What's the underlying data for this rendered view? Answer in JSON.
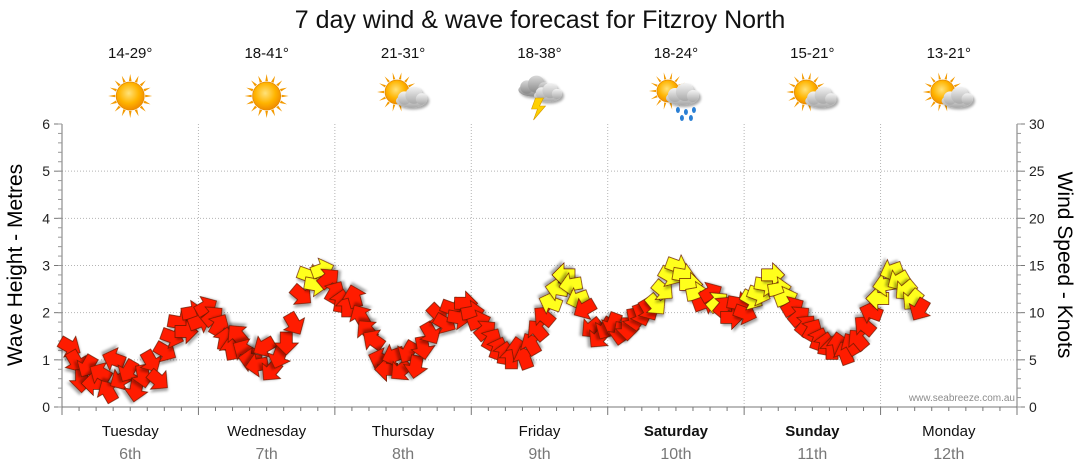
{
  "title": "7 day wind & wave forecast for Fitzroy North",
  "credit": "www.seabreeze.com.au",
  "colors": {
    "strong_wind": "#ff1a00",
    "moderate_wind": "#ffff1a",
    "grid": "#b4b4b4"
  },
  "days": [
    {
      "name": "Tuesday",
      "date": "6th",
      "temp": "14-29°",
      "icon": "sunny-icon",
      "bold": false
    },
    {
      "name": "Wednesday",
      "date": "7th",
      "temp": "18-41°",
      "icon": "sunny-icon",
      "bold": false
    },
    {
      "name": "Thursday",
      "date": "8th",
      "temp": "21-31°",
      "icon": "partly-cloudy-icon",
      "bold": false
    },
    {
      "name": "Friday",
      "date": "9th",
      "temp": "18-38°",
      "icon": "thunderstorm-icon",
      "bold": false
    },
    {
      "name": "Saturday",
      "date": "10th",
      "temp": "18-24°",
      "icon": "showers-icon",
      "bold": true
    },
    {
      "name": "Sunday",
      "date": "11th",
      "temp": "15-21°",
      "icon": "partly-cloudy-icon",
      "bold": true
    },
    {
      "name": "Monday",
      "date": "12th",
      "temp": "13-21°",
      "icon": "partly-cloudy-icon",
      "bold": false
    }
  ],
  "chart_data": {
    "type": "scatter",
    "title": "7 day wind & wave forecast for Fitzroy North",
    "ylabel_left": "Wave Height - Metres",
    "ylabel_right": "Wind Speed - Knots",
    "ylim_left": [
      0,
      6
    ],
    "ylim_right": [
      0,
      30
    ],
    "left_ticks": [
      0,
      1,
      2,
      3,
      4,
      5,
      6
    ],
    "right_ticks": [
      0,
      5,
      10,
      15,
      20,
      25,
      30
    ],
    "x_unit": "day index (0 = Tuesday 6th 00:00)",
    "grid": true,
    "series": [
      {
        "marker": "wind direction arrow",
        "points": [
          [
            0.0,
            6.5,
            30,
            "red"
          ],
          [
            0.05,
            5.0,
            60,
            "red"
          ],
          [
            0.1,
            3.0,
            90,
            "red"
          ],
          [
            0.15,
            4.5,
            120,
            "red"
          ],
          [
            0.2,
            2.5,
            180,
            "red"
          ],
          [
            0.25,
            3.5,
            210,
            "red"
          ],
          [
            0.3,
            1.5,
            240,
            "red"
          ],
          [
            0.35,
            5.0,
            200,
            "red"
          ],
          [
            0.4,
            3.0,
            150,
            "red"
          ],
          [
            0.45,
            4.0,
            120,
            "red"
          ],
          [
            0.5,
            2.0,
            100,
            "red"
          ],
          [
            0.55,
            3.5,
            80,
            "red"
          ],
          [
            0.6,
            5.0,
            60,
            "red"
          ],
          [
            0.65,
            3.0,
            40,
            "red"
          ],
          [
            0.7,
            6.0,
            30,
            "red"
          ],
          [
            0.75,
            7.5,
            20,
            "red"
          ],
          [
            0.8,
            9.0,
            10,
            "red"
          ],
          [
            0.85,
            8.0,
            0,
            "red"
          ],
          [
            0.9,
            10.0,
            350,
            "red"
          ],
          [
            0.95,
            9.0,
            340,
            "red"
          ],
          [
            1.0,
            10.5,
            330,
            "red"
          ],
          [
            1.05,
            9.5,
            320,
            "red"
          ],
          [
            1.1,
            8.5,
            300,
            "red"
          ],
          [
            1.15,
            7.0,
            280,
            "red"
          ],
          [
            1.2,
            6.0,
            260,
            "red"
          ],
          [
            1.25,
            7.5,
            230,
            "red"
          ],
          [
            1.3,
            6.0,
            210,
            "red"
          ],
          [
            1.35,
            5.0,
            190,
            "red"
          ],
          [
            1.4,
            4.5,
            170,
            "red"
          ],
          [
            1.45,
            6.5,
            150,
            "red"
          ],
          [
            1.5,
            4.0,
            130,
            "red"
          ],
          [
            1.55,
            5.5,
            110,
            "red"
          ],
          [
            1.6,
            7.0,
            90,
            "red"
          ],
          [
            1.65,
            9.0,
            60,
            "red"
          ],
          [
            1.7,
            12.0,
            40,
            "red"
          ],
          [
            1.75,
            14.0,
            20,
            "yellow"
          ],
          [
            1.8,
            13.0,
            10,
            "yellow"
          ],
          [
            1.85,
            14.5,
            340,
            "yellow"
          ],
          [
            1.9,
            13.5,
            320,
            "red"
          ],
          [
            1.95,
            12.0,
            300,
            "red"
          ],
          [
            2.0,
            11.0,
            280,
            "red"
          ],
          [
            2.05,
            10.5,
            270,
            "red"
          ],
          [
            2.1,
            11.5,
            255,
            "red"
          ],
          [
            2.15,
            9.5,
            240,
            "red"
          ],
          [
            2.2,
            8.0,
            230,
            "red"
          ],
          [
            2.25,
            7.0,
            215,
            "red"
          ],
          [
            2.3,
            5.0,
            200,
            "red"
          ],
          [
            2.35,
            4.0,
            180,
            "red"
          ],
          [
            2.4,
            5.5,
            160,
            "red"
          ],
          [
            2.45,
            4.0,
            140,
            "red"
          ],
          [
            2.5,
            6.0,
            120,
            "red"
          ],
          [
            2.55,
            4.5,
            100,
            "red"
          ],
          [
            2.6,
            6.5,
            80,
            "red"
          ],
          [
            2.65,
            8.0,
            60,
            "red"
          ],
          [
            2.7,
            10.0,
            45,
            "red"
          ],
          [
            2.75,
            9.0,
            30,
            "red"
          ],
          [
            2.8,
            10.5,
            20,
            "red"
          ],
          [
            2.85,
            9.5,
            10,
            "red"
          ],
          [
            2.9,
            11.0,
            0,
            "red"
          ],
          [
            2.95,
            10.0,
            350,
            "red"
          ],
          [
            3.0,
            9.0,
            340,
            "red"
          ],
          [
            3.05,
            8.0,
            320,
            "red"
          ],
          [
            3.1,
            7.0,
            300,
            "red"
          ],
          [
            3.15,
            6.0,
            290,
            "red"
          ],
          [
            3.2,
            5.5,
            280,
            "red"
          ],
          [
            3.25,
            5.0,
            270,
            "red"
          ],
          [
            3.3,
            6.0,
            260,
            "red"
          ],
          [
            3.35,
            5.0,
            250,
            "red"
          ],
          [
            3.4,
            6.5,
            240,
            "red"
          ],
          [
            3.45,
            8.0,
            230,
            "red"
          ],
          [
            3.5,
            9.5,
            220,
            "red"
          ],
          [
            3.55,
            11.0,
            200,
            "yellow"
          ],
          [
            3.6,
            12.5,
            190,
            "yellow"
          ],
          [
            3.65,
            14.0,
            180,
            "yellow"
          ],
          [
            3.7,
            13.0,
            170,
            "yellow"
          ],
          [
            3.75,
            11.5,
            160,
            "yellow"
          ],
          [
            3.8,
            10.5,
            150,
            "red"
          ],
          [
            3.85,
            8.5,
            140,
            "red"
          ],
          [
            3.9,
            7.5,
            130,
            "red"
          ],
          [
            3.95,
            8.5,
            120,
            "red"
          ],
          [
            4.0,
            9.0,
            110,
            "red"
          ],
          [
            4.05,
            8.0,
            100,
            "red"
          ],
          [
            4.1,
            8.5,
            90,
            "red"
          ],
          [
            4.15,
            9.5,
            80,
            "red"
          ],
          [
            4.2,
            10.0,
            70,
            "red"
          ],
          [
            4.25,
            10.5,
            60,
            "red"
          ],
          [
            4.3,
            11.0,
            50,
            "yellow"
          ],
          [
            4.35,
            12.5,
            40,
            "yellow"
          ],
          [
            4.4,
            14.0,
            30,
            "yellow"
          ],
          [
            4.45,
            15.0,
            20,
            "yellow"
          ],
          [
            4.5,
            14.0,
            10,
            "yellow"
          ],
          [
            4.55,
            13.0,
            0,
            "yellow"
          ],
          [
            4.6,
            12.0,
            350,
            "yellow"
          ],
          [
            4.65,
            11.0,
            340,
            "red"
          ],
          [
            4.7,
            12.0,
            330,
            "red"
          ],
          [
            4.75,
            11.0,
            320,
            "yellow"
          ],
          [
            4.8,
            10.5,
            310,
            "red"
          ],
          [
            4.85,
            9.5,
            0,
            "red"
          ],
          [
            4.9,
            11.0,
            10,
            "red"
          ],
          [
            4.95,
            10.0,
            20,
            "red"
          ],
          [
            5.0,
            11.5,
            30,
            "yellow"
          ],
          [
            5.05,
            12.0,
            20,
            "yellow"
          ],
          [
            5.1,
            13.0,
            10,
            "yellow"
          ],
          [
            5.15,
            14.0,
            0,
            "yellow"
          ],
          [
            5.2,
            12.5,
            350,
            "yellow"
          ],
          [
            5.25,
            11.5,
            340,
            "yellow"
          ],
          [
            5.3,
            10.5,
            330,
            "red"
          ],
          [
            5.35,
            9.5,
            320,
            "red"
          ],
          [
            5.4,
            8.5,
            310,
            "red"
          ],
          [
            5.45,
            8.0,
            300,
            "red"
          ],
          [
            5.5,
            7.0,
            290,
            "red"
          ],
          [
            5.55,
            6.5,
            280,
            "red"
          ],
          [
            5.6,
            6.0,
            270,
            "red"
          ],
          [
            5.65,
            6.5,
            260,
            "red"
          ],
          [
            5.7,
            5.5,
            250,
            "red"
          ],
          [
            5.75,
            6.5,
            240,
            "red"
          ],
          [
            5.8,
            7.0,
            230,
            "red"
          ],
          [
            5.85,
            8.5,
            220,
            "red"
          ],
          [
            5.9,
            10.0,
            200,
            "red"
          ],
          [
            5.95,
            11.5,
            180,
            "yellow"
          ],
          [
            6.0,
            13.0,
            170,
            "yellow"
          ],
          [
            6.05,
            14.5,
            160,
            "yellow"
          ],
          [
            6.1,
            13.5,
            150,
            "yellow"
          ],
          [
            6.15,
            12.5,
            140,
            "yellow"
          ],
          [
            6.2,
            11.5,
            130,
            "yellow"
          ],
          [
            6.25,
            10.5,
            120,
            "red"
          ]
        ]
      }
    ]
  }
}
